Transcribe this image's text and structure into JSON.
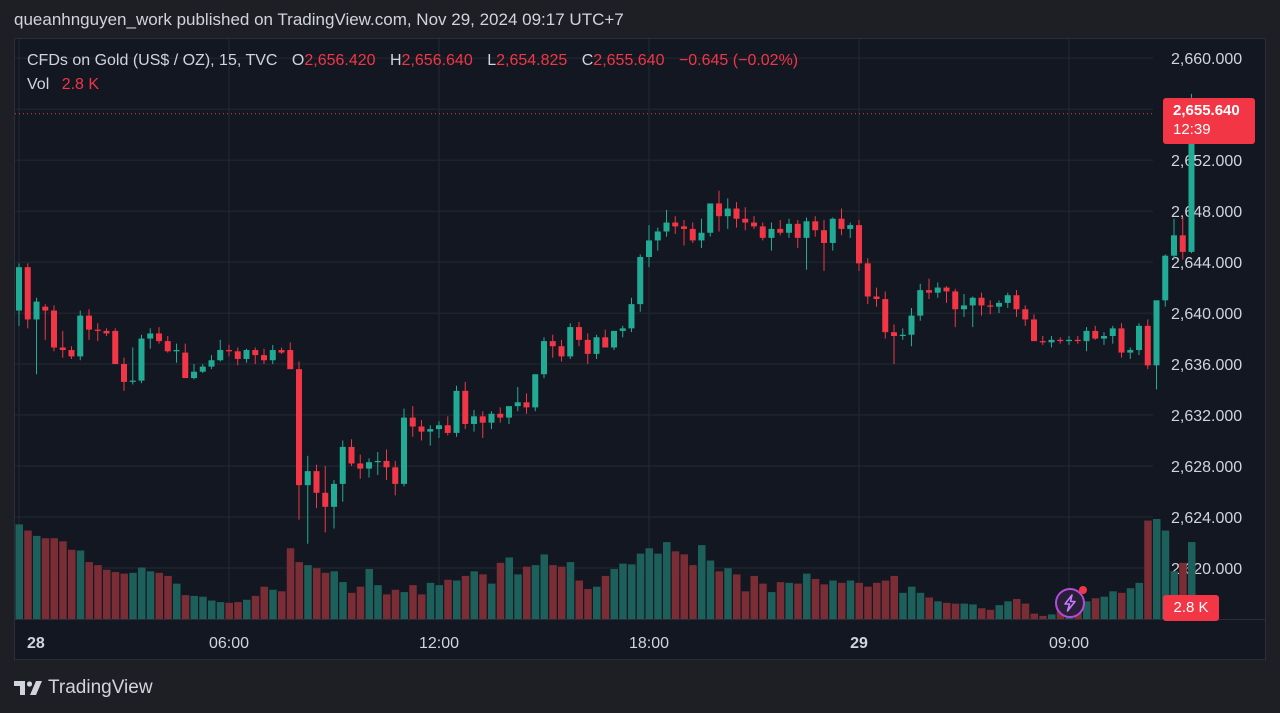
{
  "header": {
    "published_line": "queanhnguyen_work published on TradingView.com, Nov 29, 2024 09:17 UTC+7"
  },
  "legend": {
    "symbol": "CFDs on Gold (US$ / OZ), 15, TVC",
    "o_label": "O",
    "o_value": "2,656.420",
    "h_label": "H",
    "h_value": "2,656.640",
    "l_label": "L",
    "l_value": "2,654.825",
    "c_label": "C",
    "c_value": "2,655.640",
    "change": "−0.645 (−0.02%)",
    "vol_label": "Vol",
    "vol_value": "2.8 K"
  },
  "last_price": {
    "price": "2,655.640",
    "countdown": "12:39"
  },
  "volume_tag": "2.8 K",
  "footer": {
    "brand": "TradingView"
  },
  "colors": {
    "up": "#22ab94",
    "down": "#f23645",
    "vol_up": "#1d5f5b",
    "vol_down": "#7a2d35",
    "grid": "#242834",
    "background": "#131722"
  },
  "icons": [
    "tradingview-logo-icon",
    "lightning-icon"
  ],
  "chart_data": {
    "type": "candlestick",
    "interval": "15",
    "ylim": [
      2616.0,
      2661.5
    ],
    "y_ticks": [
      "2,660.000",
      "2,656.000",
      "2,652.000",
      "2,648.000",
      "2,644.000",
      "2,640.000",
      "2,636.000",
      "2,632.000",
      "2,628.000",
      "2,624.000",
      "2,620.000"
    ],
    "y_tick_values": [
      2660,
      2656,
      2652,
      2648,
      2644,
      2640,
      2636,
      2632,
      2628,
      2624,
      2620
    ],
    "x_labels": [
      {
        "text": "28",
        "index": 0,
        "bold": true
      },
      {
        "text": "06:00",
        "index": 24,
        "bold": false
      },
      {
        "text": "12:00",
        "index": 48,
        "bold": false
      },
      {
        "text": "18:00",
        "index": 72,
        "bold": false
      },
      {
        "text": "29",
        "index": 96,
        "bold": true
      },
      {
        "text": "09:00",
        "index": 120,
        "bold": false
      }
    ],
    "candles": [
      [
        2640.2,
        2643.9,
        2639.0,
        2643.6
      ],
      [
        2643.6,
        2643.9,
        2638.8,
        2639.5
      ],
      [
        2639.5,
        2641.2,
        2635.2,
        2640.9
      ],
      [
        2640.5,
        2640.7,
        2637.9,
        2640.2
      ],
      [
        2640.2,
        2640.6,
        2637.0,
        2637.3
      ],
      [
        2637.3,
        2638.6,
        2636.5,
        2637.1
      ],
      [
        2637.1,
        2637.4,
        2636.4,
        2636.6
      ],
      [
        2636.6,
        2640.2,
        2636.3,
        2639.8
      ],
      [
        2639.8,
        2640.3,
        2637.9,
        2638.7
      ],
      [
        2638.7,
        2639.2,
        2637.8,
        2638.6
      ],
      [
        2638.6,
        2638.8,
        2638.2,
        2638.4
      ],
      [
        2638.6,
        2638.8,
        2636.0,
        2636.0
      ],
      [
        2636.0,
        2636.5,
        2633.9,
        2634.6
      ],
      [
        2634.6,
        2637.3,
        2634.4,
        2634.7
      ],
      [
        2634.7,
        2638.3,
        2634.5,
        2638.0
      ],
      [
        2638.0,
        2638.8,
        2637.2,
        2638.4
      ],
      [
        2638.4,
        2638.9,
        2637.6,
        2637.8
      ],
      [
        2637.8,
        2638.2,
        2636.9,
        2637.0
      ],
      [
        2637.0,
        2637.6,
        2636.1,
        2637.1
      ],
      [
        2636.9,
        2637.6,
        2634.9,
        2634.9
      ],
      [
        2634.9,
        2636.0,
        2634.8,
        2635.4
      ],
      [
        2635.4,
        2636.0,
        2635.3,
        2635.8
      ],
      [
        2635.8,
        2636.7,
        2635.6,
        2636.3
      ],
      [
        2636.3,
        2637.9,
        2636.2,
        2637.1
      ],
      [
        2637.1,
        2637.5,
        2636.6,
        2637.0
      ],
      [
        2637.0,
        2637.3,
        2635.9,
        2636.4
      ],
      [
        2636.4,
        2637.2,
        2636.1,
        2637.1
      ],
      [
        2637.1,
        2637.3,
        2636.0,
        2636.7
      ],
      [
        2636.7,
        2637.2,
        2636.0,
        2636.3
      ],
      [
        2636.3,
        2637.5,
        2636.0,
        2637.1
      ],
      [
        2637.1,
        2637.3,
        2636.8,
        2636.9
      ],
      [
        2637.1,
        2637.7,
        2635.6,
        2635.6
      ],
      [
        2635.6,
        2636.2,
        2623.8,
        2626.5
      ],
      [
        2626.5,
        2628.8,
        2621.9,
        2627.6
      ],
      [
        2627.6,
        2628.1,
        2624.7,
        2625.9
      ],
      [
        2625.9,
        2628.0,
        2622.8,
        2624.8
      ],
      [
        2624.8,
        2626.9,
        2623.1,
        2626.6
      ],
      [
        2626.6,
        2630.0,
        2625.2,
        2629.5
      ],
      [
        2629.5,
        2630.1,
        2628.0,
        2628.2
      ],
      [
        2628.2,
        2628.9,
        2627.0,
        2627.8
      ],
      [
        2627.8,
        2628.6,
        2627.1,
        2628.3
      ],
      [
        2628.3,
        2629.1,
        2627.3,
        2628.4
      ],
      [
        2628.4,
        2629.3,
        2626.9,
        2627.9
      ],
      [
        2627.9,
        2628.4,
        2625.7,
        2626.6
      ],
      [
        2626.6,
        2632.5,
        2626.4,
        2631.8
      ],
      [
        2631.8,
        2632.7,
        2630.3,
        2631.1
      ],
      [
        2631.1,
        2631.6,
        2630.0,
        2630.7
      ],
      [
        2630.7,
        2631.2,
        2629.6,
        2630.9
      ],
      [
        2630.9,
        2631.5,
        2630.2,
        2631.2
      ],
      [
        2631.2,
        2631.9,
        2630.4,
        2630.6
      ],
      [
        2630.6,
        2634.3,
        2630.3,
        2633.9
      ],
      [
        2633.9,
        2634.6,
        2630.9,
        2631.3
      ],
      [
        2631.3,
        2632.4,
        2630.7,
        2631.9
      ],
      [
        2631.9,
        2632.3,
        2630.2,
        2631.4
      ],
      [
        2631.4,
        2632.3,
        2630.9,
        2632.1
      ],
      [
        2632.1,
        2632.6,
        2631.4,
        2631.8
      ],
      [
        2631.8,
        2632.6,
        2631.3,
        2632.7
      ],
      [
        2632.7,
        2634.2,
        2632.3,
        2633.0
      ],
      [
        2633.0,
        2633.7,
        2632.1,
        2632.6
      ],
      [
        2632.6,
        2635.2,
        2632.3,
        2635.2
      ],
      [
        2635.2,
        2638.1,
        2634.9,
        2637.8
      ],
      [
        2637.8,
        2638.3,
        2636.5,
        2637.4
      ],
      [
        2637.4,
        2637.9,
        2636.2,
        2636.6
      ],
      [
        2636.6,
        2639.2,
        2636.4,
        2638.9
      ],
      [
        2638.9,
        2639.3,
        2637.4,
        2637.9
      ],
      [
        2637.9,
        2638.4,
        2636.0,
        2636.8
      ],
      [
        2636.8,
        2638.3,
        2636.4,
        2638.1
      ],
      [
        2638.1,
        2638.7,
        2637.4,
        2637.3
      ],
      [
        2637.3,
        2638.6,
        2637.1,
        2638.6
      ],
      [
        2638.6,
        2639.0,
        2638.1,
        2638.8
      ],
      [
        2638.8,
        2641.2,
        2638.5,
        2640.7
      ],
      [
        2640.7,
        2644.6,
        2640.1,
        2644.4
      ],
      [
        2644.4,
        2646.9,
        2643.6,
        2645.7
      ],
      [
        2645.7,
        2646.7,
        2644.9,
        2646.4
      ],
      [
        2646.4,
        2648.1,
        2646.0,
        2647.1
      ],
      [
        2647.1,
        2647.6,
        2646.2,
        2646.8
      ],
      [
        2646.8,
        2647.3,
        2645.3,
        2646.6
      ],
      [
        2646.6,
        2647.1,
        2645.5,
        2645.7
      ],
      [
        2645.7,
        2647.4,
        2645.1,
        2646.3
      ],
      [
        2646.3,
        2648.4,
        2646.0,
        2648.6
      ],
      [
        2648.6,
        2649.6,
        2646.4,
        2647.6
      ],
      [
        2647.6,
        2649.0,
        2646.6,
        2648.2
      ],
      [
        2648.2,
        2648.7,
        2646.7,
        2647.4
      ],
      [
        2647.4,
        2648.3,
        2646.5,
        2647.1
      ],
      [
        2647.1,
        2647.6,
        2646.6,
        2646.8
      ],
      [
        2646.8,
        2647.1,
        2645.7,
        2645.9
      ],
      [
        2645.9,
        2647.1,
        2644.9,
        2646.6
      ],
      [
        2646.6,
        2647.3,
        2646.1,
        2646.3
      ],
      [
        2646.3,
        2647.4,
        2645.9,
        2647.0
      ],
      [
        2647.0,
        2647.3,
        2645.1,
        2645.9
      ],
      [
        2645.9,
        2647.5,
        2643.4,
        2647.2
      ],
      [
        2647.2,
        2647.6,
        2646.0,
        2646.5
      ],
      [
        2646.5,
        2647.3,
        2643.3,
        2645.5
      ],
      [
        2645.5,
        2647.5,
        2644.9,
        2647.4
      ],
      [
        2647.4,
        2648.2,
        2646.1,
        2646.6
      ],
      [
        2646.6,
        2647.1,
        2645.9,
        2646.9
      ],
      [
        2646.9,
        2647.3,
        2643.3,
        2643.9
      ],
      [
        2643.9,
        2644.3,
        2640.7,
        2641.3
      ],
      [
        2641.3,
        2642.0,
        2640.5,
        2641.1
      ],
      [
        2641.1,
        2641.7,
        2638.0,
        2638.5
      ],
      [
        2638.5,
        2639.1,
        2636.0,
        2638.2
      ],
      [
        2638.2,
        2638.8,
        2637.9,
        2638.3
      ],
      [
        2638.3,
        2640.4,
        2637.4,
        2639.8
      ],
      [
        2639.8,
        2642.3,
        2639.4,
        2641.8
      ],
      [
        2641.8,
        2642.7,
        2641.1,
        2641.6
      ],
      [
        2641.6,
        2642.4,
        2641.2,
        2642.0
      ],
      [
        2642.0,
        2642.1,
        2640.8,
        2641.7
      ],
      [
        2641.7,
        2641.9,
        2638.9,
        2640.3
      ],
      [
        2640.3,
        2641.5,
        2639.7,
        2640.6
      ],
      [
        2640.6,
        2641.3,
        2638.9,
        2641.2
      ],
      [
        2641.2,
        2641.6,
        2639.8,
        2640.6
      ],
      [
        2640.6,
        2641.0,
        2639.9,
        2640.5
      ],
      [
        2640.5,
        2641.0,
        2640.0,
        2640.8
      ],
      [
        2640.8,
        2641.6,
        2640.4,
        2641.4
      ],
      [
        2641.4,
        2641.8,
        2639.7,
        2640.3
      ],
      [
        2640.3,
        2640.6,
        2639.0,
        2639.5
      ],
      [
        2639.5,
        2639.9,
        2637.8,
        2637.8
      ],
      [
        2637.8,
        2638.2,
        2637.5,
        2637.7
      ],
      [
        2637.7,
        2638.2,
        2637.3,
        2637.9
      ],
      [
        2637.9,
        2638.1,
        2637.6,
        2637.8
      ],
      [
        2637.8,
        2638.2,
        2637.5,
        2637.9
      ],
      [
        2637.9,
        2638.2,
        2637.6,
        2637.8
      ],
      [
        2637.8,
        2638.9,
        2637.0,
        2638.6
      ],
      [
        2638.6,
        2639.0,
        2637.9,
        2638.0
      ],
      [
        2638.0,
        2638.5,
        2637.5,
        2638.2
      ],
      [
        2638.2,
        2639.0,
        2637.6,
        2638.8
      ],
      [
        2638.8,
        2639.2,
        2636.5,
        2636.9
      ],
      [
        2636.9,
        2637.3,
        2636.4,
        2637.1
      ],
      [
        2637.1,
        2639.2,
        2636.7,
        2639.0
      ],
      [
        2639.0,
        2639.5,
        2635.6,
        2635.9
      ],
      [
        2635.9,
        2640.9,
        2634.0,
        2641.0
      ],
      [
        2641.0,
        2644.6,
        2640.5,
        2644.5
      ],
      [
        2644.5,
        2647.4,
        2644.3,
        2646.1
      ],
      [
        2646.1,
        2647.5,
        2644.2,
        2644.8
      ],
      [
        2644.8,
        2657.2,
        2644.7,
        2656.8
      ],
      [
        2656.4,
        2656.6,
        2654.8,
        2655.6
      ]
    ],
    "volume": [
      1230,
      1150,
      1080,
      1050,
      1050,
      1010,
      900,
      890,
      740,
      700,
      640,
      610,
      590,
      600,
      670,
      620,
      600,
      560,
      460,
      310,
      300,
      290,
      240,
      220,
      210,
      220,
      250,
      300,
      420,
      380,
      360,
      920,
      740,
      700,
      660,
      600,
      620,
      480,
      340,
      420,
      650,
      440,
      320,
      380,
      350,
      440,
      320,
      470,
      440,
      510,
      500,
      560,
      620,
      580,
      460,
      730,
      800,
      580,
      680,
      700,
      840,
      700,
      680,
      740,
      500,
      390,
      420,
      560,
      650,
      720,
      710,
      850,
      920,
      850,
      1000,
      880,
      840,
      700,
      960,
      760,
      620,
      660,
      580,
      360,
      560,
      460,
      350,
      480,
      470,
      460,
      590,
      520,
      450,
      500,
      470,
      500,
      470,
      420,
      470,
      500,
      560,
      340,
      420,
      340,
      280,
      230,
      210,
      200,
      200,
      190,
      140,
      120,
      180,
      230,
      260,
      200,
      70,
      40,
      60,
      120,
      120,
      240,
      230,
      270,
      290,
      360,
      340,
      400,
      470,
      1280,
      1300,
      1150,
      620,
      730,
      1000,
      120
    ],
    "last_price": 2655.64,
    "last_volume": "2.8 K"
  }
}
